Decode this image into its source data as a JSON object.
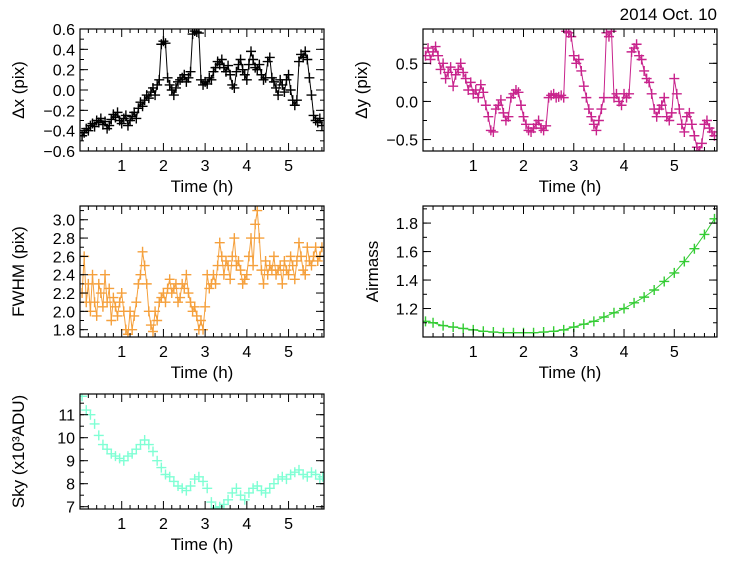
{
  "figure": {
    "date_label": "2014 Oct. 10"
  },
  "chart_data": [
    {
      "id": "dx",
      "type": "scatter",
      "title": "",
      "xlabel": "Time (h)",
      "ylabel": "Δx (pix)",
      "xlim": [
        0.0,
        5.85
      ],
      "ylim": [
        -0.6,
        0.6
      ],
      "xticks": [
        1,
        2,
        3,
        4,
        5
      ],
      "yticks": [
        -0.6,
        -0.4,
        -0.2,
        0.0,
        0.2,
        0.4,
        0.6
      ],
      "ytick_labels": [
        "−0.6",
        "−0.4",
        "−0.2",
        "0.0",
        "0.2",
        "0.4",
        "0.6"
      ],
      "color": "#000000",
      "connect": true,
      "series": [
        {
          "name": "dx",
          "x": [
            0.05,
            0.1,
            0.15,
            0.2,
            0.25,
            0.3,
            0.35,
            0.4,
            0.45,
            0.5,
            0.55,
            0.6,
            0.65,
            0.7,
            0.75,
            0.8,
            0.85,
            0.9,
            0.95,
            1.0,
            1.05,
            1.1,
            1.15,
            1.2,
            1.25,
            1.3,
            1.35,
            1.4,
            1.45,
            1.5,
            1.55,
            1.6,
            1.65,
            1.7,
            1.75,
            1.8,
            1.85,
            1.9,
            1.95,
            2.0,
            2.05,
            2.1,
            2.15,
            2.2,
            2.25,
            2.3,
            2.35,
            2.4,
            2.45,
            2.5,
            2.55,
            2.6,
            2.65,
            2.7,
            2.75,
            2.8,
            2.85,
            2.9,
            2.95,
            3.0,
            3.05,
            3.1,
            3.15,
            3.2,
            3.25,
            3.3,
            3.35,
            3.4,
            3.45,
            3.5,
            3.55,
            3.6,
            3.65,
            3.7,
            3.75,
            3.8,
            3.85,
            3.9,
            3.95,
            4.0,
            4.05,
            4.1,
            4.15,
            4.2,
            4.25,
            4.3,
            4.35,
            4.4,
            4.45,
            4.5,
            4.55,
            4.6,
            4.65,
            4.7,
            4.75,
            4.8,
            4.85,
            4.9,
            4.95,
            5.0,
            5.05,
            5.1,
            5.15,
            5.2,
            5.25,
            5.3,
            5.35,
            5.4,
            5.45,
            5.5,
            5.55,
            5.6,
            5.65,
            5.7,
            5.75,
            5.8
          ],
          "y": [
            -0.45,
            -0.42,
            -0.38,
            -0.4,
            -0.35,
            -0.33,
            -0.36,
            -0.3,
            -0.32,
            -0.28,
            -0.34,
            -0.31,
            -0.38,
            -0.35,
            -0.29,
            -0.24,
            -0.27,
            -0.22,
            -0.3,
            -0.33,
            -0.28,
            -0.25,
            -0.35,
            -0.3,
            -0.26,
            -0.22,
            -0.28,
            -0.18,
            -0.12,
            -0.16,
            -0.1,
            -0.05,
            -0.08,
            -0.02,
            0.02,
            -0.05,
            0.05,
            0.1,
            0.45,
            0.48,
            0.46,
            0.12,
            0.05,
            0.0,
            -0.05,
            0.02,
            0.08,
            0.1,
            0.12,
            0.15,
            0.08,
            0.12,
            0.18,
            0.55,
            0.58,
            0.57,
            0.56,
            0.1,
            0.05,
            0.08,
            0.06,
            0.12,
            0.1,
            0.18,
            0.22,
            0.28,
            0.25,
            0.3,
            0.22,
            0.18,
            0.24,
            0.15,
            0.05,
            0.02,
            0.18,
            0.25,
            0.3,
            0.2,
            0.15,
            0.1,
            0.25,
            0.38,
            0.3,
            0.22,
            0.2,
            0.25,
            0.15,
            0.1,
            0.12,
            0.28,
            0.32,
            0.12,
            0.08,
            0.02,
            -0.05,
            0.1,
            0.05,
            -0.02,
            0.1,
            0.15,
            0.0,
            -0.1,
            -0.15,
            -0.1,
            0.28,
            0.35,
            0.32,
            0.38,
            0.3,
            0.12,
            -0.05,
            -0.25,
            -0.3,
            -0.32,
            -0.28,
            -0.35
          ]
        }
      ]
    },
    {
      "id": "dy",
      "type": "scatter",
      "title": "",
      "xlabel": "Time (h)",
      "ylabel": "Δy (pix)",
      "xlim": [
        0.0,
        5.85
      ],
      "ylim": [
        -0.65,
        0.95
      ],
      "xticks": [
        1,
        2,
        3,
        4,
        5
      ],
      "yticks": [
        -0.5,
        0.0,
        0.5
      ],
      "ytick_labels": [
        "−0.5",
        "0.0",
        "0.5"
      ],
      "color": "#c8238c",
      "connect": true,
      "series": [
        {
          "name": "dy",
          "x": [
            0.05,
            0.1,
            0.15,
            0.2,
            0.25,
            0.3,
            0.35,
            0.4,
            0.45,
            0.5,
            0.55,
            0.6,
            0.65,
            0.7,
            0.75,
            0.8,
            0.85,
            0.9,
            0.95,
            1.0,
            1.05,
            1.1,
            1.15,
            1.2,
            1.25,
            1.3,
            1.35,
            1.4,
            1.45,
            1.5,
            1.55,
            1.6,
            1.65,
            1.7,
            1.75,
            1.8,
            1.85,
            1.9,
            1.95,
            2.0,
            2.05,
            2.1,
            2.15,
            2.2,
            2.25,
            2.3,
            2.35,
            2.4,
            2.45,
            2.5,
            2.55,
            2.6,
            2.65,
            2.7,
            2.75,
            2.8,
            2.85,
            2.9,
            2.95,
            3.0,
            3.05,
            3.1,
            3.15,
            3.2,
            3.25,
            3.3,
            3.35,
            3.4,
            3.45,
            3.5,
            3.55,
            3.6,
            3.65,
            3.7,
            3.75,
            3.8,
            3.85,
            3.9,
            3.95,
            4.0,
            4.05,
            4.1,
            4.15,
            4.2,
            4.25,
            4.3,
            4.35,
            4.4,
            4.45,
            4.5,
            4.55,
            4.6,
            4.65,
            4.7,
            4.75,
            4.8,
            4.85,
            4.9,
            4.95,
            5.0,
            5.05,
            5.1,
            5.15,
            5.2,
            5.25,
            5.3,
            5.35,
            5.4,
            5.45,
            5.5,
            5.55,
            5.6,
            5.65,
            5.7,
            5.75,
            5.8
          ],
          "y": [
            0.6,
            0.7,
            0.55,
            0.65,
            0.72,
            0.6,
            0.42,
            0.5,
            0.3,
            0.38,
            0.45,
            0.2,
            0.35,
            0.42,
            0.5,
            0.38,
            0.3,
            0.15,
            0.25,
            0.1,
            0.15,
            0.05,
            0.22,
            0.12,
            -0.05,
            -0.2,
            -0.38,
            -0.4,
            -0.1,
            -0.05,
            0.02,
            -0.15,
            -0.25,
            -0.2,
            0.05,
            0.1,
            0.15,
            0.12,
            -0.05,
            -0.2,
            -0.3,
            -0.38,
            -0.4,
            -0.35,
            -0.3,
            -0.25,
            -0.35,
            -0.38,
            -0.32,
            0.05,
            0.08,
            0.1,
            0.05,
            0.06,
            0.08,
            0.05,
            0.92,
            0.9,
            0.85,
            0.6,
            0.5,
            0.55,
            0.4,
            0.2,
            0.05,
            -0.1,
            -0.2,
            -0.3,
            -0.38,
            -0.25,
            -0.1,
            0.05,
            0.9,
            0.85,
            0.92,
            0.05,
            0.1,
            0.0,
            -0.05,
            0.1,
            0.05,
            0.1,
            0.65,
            0.7,
            0.75,
            0.6,
            0.55,
            0.4,
            0.3,
            0.25,
            0.1,
            -0.1,
            -0.2,
            -0.1,
            -0.05,
            0.05,
            -0.2,
            -0.25,
            -0.15,
            0.3,
            0.1,
            -0.1,
            -0.3,
            -0.4,
            -0.2,
            -0.15,
            -0.3,
            -0.45,
            -0.6,
            -0.65,
            -0.55,
            -0.3,
            -0.25,
            -0.35,
            -0.4,
            -0.45
          ]
        }
      ]
    },
    {
      "id": "fwhm",
      "type": "scatter",
      "title": "",
      "xlabel": "Time (h)",
      "ylabel": "FWHM (pix)",
      "xlim": [
        0.0,
        5.85
      ],
      "ylim": [
        1.72,
        3.15
      ],
      "xticks": [
        1,
        2,
        3,
        4,
        5
      ],
      "yticks": [
        1.8,
        2.0,
        2.2,
        2.4,
        2.6,
        2.8,
        3.0
      ],
      "ytick_labels": [
        "1.8",
        "2.0",
        "2.2",
        "2.4",
        "2.6",
        "2.8",
        "3.0"
      ],
      "color": "#f5a03c",
      "connect": true,
      "series": [
        {
          "name": "FWHM",
          "x": [
            0.05,
            0.1,
            0.15,
            0.2,
            0.25,
            0.3,
            0.35,
            0.4,
            0.45,
            0.5,
            0.55,
            0.6,
            0.65,
            0.7,
            0.75,
            0.8,
            0.85,
            0.9,
            0.95,
            1.0,
            1.05,
            1.1,
            1.15,
            1.2,
            1.25,
            1.3,
            1.35,
            1.4,
            1.45,
            1.5,
            1.55,
            1.6,
            1.65,
            1.7,
            1.75,
            1.8,
            1.85,
            1.9,
            1.95,
            2.0,
            2.05,
            2.1,
            2.15,
            2.2,
            2.25,
            2.3,
            2.35,
            2.4,
            2.45,
            2.5,
            2.55,
            2.6,
            2.65,
            2.7,
            2.75,
            2.8,
            2.85,
            2.9,
            2.95,
            3.0,
            3.05,
            3.1,
            3.15,
            3.2,
            3.25,
            3.3,
            3.35,
            3.4,
            3.45,
            3.5,
            3.55,
            3.6,
            3.65,
            3.7,
            3.75,
            3.8,
            3.85,
            3.9,
            3.95,
            4.0,
            4.05,
            4.1,
            4.15,
            4.2,
            4.25,
            4.3,
            4.35,
            4.4,
            4.45,
            4.5,
            4.55,
            4.6,
            4.65,
            4.7,
            4.75,
            4.8,
            4.85,
            4.9,
            4.95,
            5.0,
            5.05,
            5.1,
            5.15,
            5.2,
            5.25,
            5.3,
            5.35,
            5.4,
            5.45,
            5.5,
            5.55,
            5.6,
            5.65,
            5.7,
            5.75,
            5.8
          ],
          "y": [
            2.2,
            2.6,
            2.1,
            2.3,
            2.0,
            2.4,
            2.1,
            1.95,
            2.3,
            2.2,
            2.05,
            2.4,
            2.1,
            2.25,
            1.9,
            2.15,
            2.05,
            1.95,
            2.1,
            2.2,
            2.0,
            1.8,
            1.75,
            2.0,
            1.8,
            1.95,
            2.1,
            2.3,
            2.4,
            2.65,
            2.5,
            2.3,
            2.0,
            1.85,
            1.78,
            2.0,
            1.9,
            2.1,
            2.15,
            2.2,
            2.1,
            2.25,
            2.35,
            2.2,
            2.25,
            2.3,
            2.1,
            2.15,
            2.3,
            2.25,
            2.4,
            2.2,
            2.1,
            2.0,
            2.05,
            1.95,
            1.8,
            1.9,
            1.8,
            2.05,
            2.4,
            2.25,
            2.3,
            2.4,
            2.3,
            2.5,
            2.75,
            2.6,
            2.4,
            2.55,
            2.5,
            2.35,
            2.6,
            2.8,
            2.5,
            2.55,
            2.45,
            2.3,
            2.35,
            2.4,
            2.6,
            2.8,
            2.5,
            2.95,
            3.1,
            2.8,
            2.45,
            2.3,
            2.55,
            2.4,
            2.5,
            2.45,
            2.6,
            2.4,
            2.45,
            2.5,
            2.3,
            2.55,
            2.45,
            2.4,
            2.6,
            2.5,
            2.35,
            2.55,
            2.75,
            2.6,
            2.45,
            2.4,
            2.7,
            2.55,
            2.5,
            2.6,
            2.7,
            2.55,
            2.6,
            2.7
          ]
        }
      ]
    },
    {
      "id": "airmass",
      "type": "scatter",
      "title": "",
      "xlabel": "Time (h)",
      "ylabel": "Airmass",
      "xlim": [
        0.0,
        5.85
      ],
      "ylim": [
        1.0,
        1.92
      ],
      "xticks": [
        1,
        2,
        3,
        4,
        5
      ],
      "yticks": [
        1.2,
        1.4,
        1.6,
        1.8
      ],
      "ytick_labels": [
        "1.2",
        "1.4",
        "1.6",
        "1.8"
      ],
      "color": "#33cc33",
      "connect": true,
      "series": [
        {
          "name": "Airmass",
          "x": [
            0.05,
            0.2,
            0.4,
            0.6,
            0.8,
            1.0,
            1.2,
            1.4,
            1.6,
            1.8,
            2.0,
            2.2,
            2.4,
            2.6,
            2.8,
            3.0,
            3.2,
            3.4,
            3.6,
            3.8,
            4.0,
            4.2,
            4.4,
            4.6,
            4.8,
            5.0,
            5.2,
            5.4,
            5.6,
            5.8
          ],
          "y": [
            1.11,
            1.1,
            1.08,
            1.07,
            1.06,
            1.05,
            1.04,
            1.035,
            1.03,
            1.03,
            1.03,
            1.03,
            1.035,
            1.04,
            1.05,
            1.07,
            1.09,
            1.11,
            1.14,
            1.17,
            1.2,
            1.24,
            1.28,
            1.33,
            1.39,
            1.45,
            1.53,
            1.62,
            1.72,
            1.83
          ]
        }
      ]
    },
    {
      "id": "sky",
      "type": "scatter",
      "title": "",
      "xlabel": "Time (h)",
      "ylabel": "Sky (x10³ADU)",
      "xlim": [
        0.0,
        5.85
      ],
      "ylim": [
        6.9,
        11.9
      ],
      "xticks": [
        1,
        2,
        3,
        4,
        5
      ],
      "yticks": [
        7,
        8,
        9,
        10,
        11
      ],
      "ytick_labels": [
        "7",
        "8",
        "9",
        "10",
        "11"
      ],
      "color": "#7fffd4",
      "connect": false,
      "series": [
        {
          "name": "Sky",
          "x": [
            0.05,
            0.15,
            0.25,
            0.35,
            0.45,
            0.55,
            0.65,
            0.75,
            0.85,
            0.95,
            1.05,
            1.15,
            1.25,
            1.35,
            1.45,
            1.55,
            1.65,
            1.75,
            1.85,
            1.95,
            2.05,
            2.15,
            2.25,
            2.35,
            2.45,
            2.55,
            2.65,
            2.75,
            2.85,
            2.95,
            3.05,
            3.15,
            3.25,
            3.35,
            3.45,
            3.55,
            3.65,
            3.75,
            3.85,
            3.95,
            4.05,
            4.15,
            4.25,
            4.35,
            4.45,
            4.55,
            4.65,
            4.75,
            4.85,
            4.95,
            5.05,
            5.15,
            5.25,
            5.35,
            5.45,
            5.55,
            5.65,
            5.75,
            5.82
          ],
          "y": [
            11.8,
            11.2,
            11.0,
            10.6,
            10.1,
            9.7,
            9.5,
            9.3,
            9.2,
            9.1,
            9.0,
            9.2,
            9.3,
            9.5,
            9.7,
            9.9,
            9.7,
            9.4,
            9.0,
            8.7,
            8.4,
            8.3,
            8.1,
            7.9,
            7.8,
            7.7,
            7.9,
            8.2,
            8.3,
            8.1,
            7.8,
            7.2,
            6.95,
            7.0,
            7.1,
            7.3,
            7.6,
            7.8,
            7.5,
            7.3,
            7.6,
            7.8,
            7.9,
            7.7,
            7.6,
            7.8,
            8.0,
            8.2,
            8.3,
            8.2,
            8.4,
            8.5,
            8.6,
            8.4,
            8.3,
            8.5,
            8.4,
            8.2,
            8.3
          ]
        }
      ]
    }
  ]
}
